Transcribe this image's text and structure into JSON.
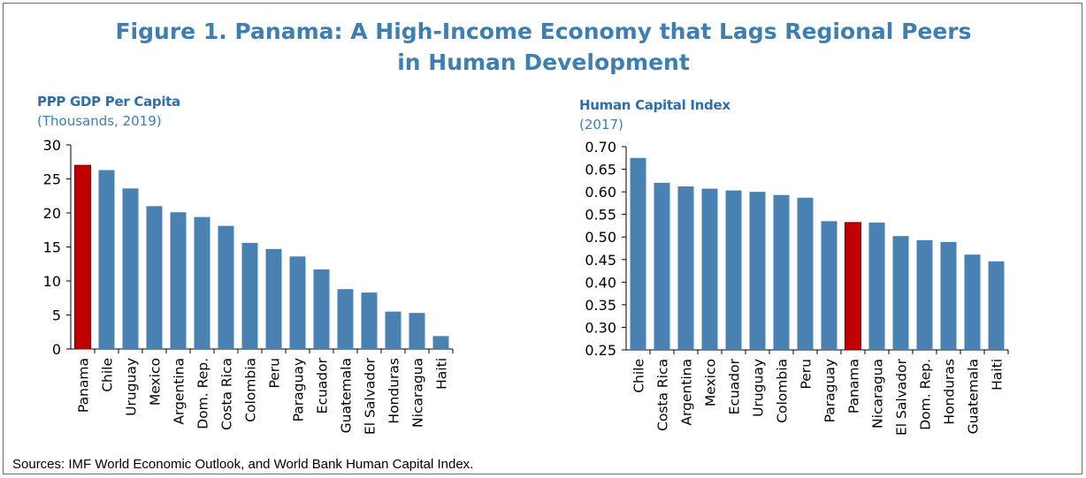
{
  "figure": {
    "title_line1": "Figure 1. Panama: A High-Income Economy that Lags Regional Peers",
    "title_line2": "in Human Development",
    "source": "Sources: IMF World Economic Outlook, and World Bank Human Capital Index."
  },
  "colors": {
    "bar": "#4a81b3",
    "highlight": "#c00000",
    "title": "#3d7fb0",
    "axis": "#000000"
  },
  "chart_data": [
    {
      "type": "bar",
      "title": "PPP GDP Per Capita",
      "subtitle": "(Thousands, 2019)",
      "categories": [
        "Panama",
        "Chile",
        "Uruguay",
        "Mexico",
        "Argentina",
        "Dom. Rep.",
        "Costa Rica",
        "Colombia",
        "Peru",
        "Paraguay",
        "Ecuador",
        "Guatemala",
        "El Salvador",
        "Honduras",
        "Nicaragua",
        "Haiti"
      ],
      "values": [
        27.0,
        26.3,
        23.6,
        21.0,
        20.1,
        19.4,
        18.1,
        15.6,
        14.7,
        13.6,
        11.7,
        8.8,
        8.3,
        5.5,
        5.3,
        1.9
      ],
      "highlight": "Panama",
      "ylim": [
        0,
        30
      ],
      "yticks": [
        "0",
        "5",
        "10",
        "15",
        "20",
        "25",
        "30"
      ],
      "grid": false,
      "legend": "none"
    },
    {
      "type": "bar",
      "title": "Human Capital Index",
      "subtitle": "(2017)",
      "categories": [
        "Chile",
        "Costa Rica",
        "Argentina",
        "Mexico",
        "Ecuador",
        "Uruguay",
        "Colombia",
        "Peru",
        "Paraguay",
        "Panama",
        "Nicaragua",
        "El Salvador",
        "Dom. Rep.",
        "Honduras",
        "Guatemala",
        "Haiti"
      ],
      "values": [
        0.675,
        0.62,
        0.612,
        0.607,
        0.603,
        0.6,
        0.593,
        0.587,
        0.535,
        0.532,
        0.532,
        0.502,
        0.493,
        0.489,
        0.461,
        0.446
      ],
      "highlight": "Panama",
      "ylim": [
        0.25,
        0.7
      ],
      "yticks": [
        "0.25",
        "0.30",
        "0.35",
        "0.40",
        "0.45",
        "0.50",
        "0.55",
        "0.60",
        "0.65",
        "0.70"
      ],
      "grid": false,
      "legend": "none"
    }
  ]
}
